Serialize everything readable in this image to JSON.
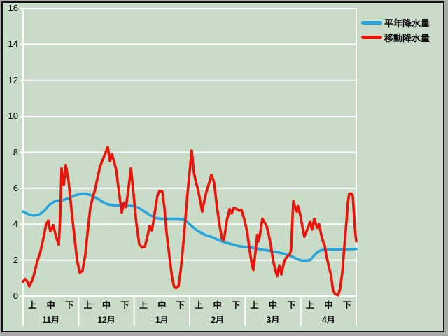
{
  "chart": {
    "title": "",
    "colors": {
      "background": "#c8dcc8",
      "gridline": "#ffffff",
      "frame_gray": "#a8a8a8",
      "frame_black": "#101010",
      "normal_line": "#29a3dc",
      "moving_line": "#ec1408"
    },
    "legend": [
      {
        "label": "平年降水量",
        "color": "#29a3dc"
      },
      {
        "label": "移動降水量",
        "color": "#ec1408"
      }
    ],
    "y_axis": {
      "min": 0,
      "max": 16,
      "step": 2,
      "ticks": [
        16,
        14,
        12,
        10,
        8,
        6,
        4,
        2,
        0
      ]
    },
    "x_axis": {
      "months": [
        "11月",
        "12月",
        "1月",
        "2月",
        "3月",
        "4月"
      ],
      "periods": [
        "上",
        "中",
        "下"
      ]
    }
  },
  "chart_data": {
    "type": "line",
    "title": "",
    "xlabel": "",
    "ylabel": "",
    "x_unit": "days from Nov 1 (0) to Apr 30 (181); months 11月-4月 each split into 上/中/下",
    "xlim": [
      0,
      181
    ],
    "ylim": [
      0,
      16
    ],
    "yticks": [
      0,
      2,
      4,
      6,
      8,
      10,
      12,
      14,
      16
    ],
    "grid": true,
    "legend_position": "right",
    "categories": [
      "11月",
      "12月",
      "1月",
      "2月",
      "3月",
      "4月"
    ],
    "series": [
      {
        "name": "平年降水量",
        "color": "#29a3dc",
        "x": [
          0,
          3,
          6,
          9,
          12,
          14,
          16,
          18,
          22,
          25,
          28,
          31,
          34,
          37,
          40,
          43,
          46,
          50,
          55,
          60,
          63,
          66,
          69,
          72,
          75,
          80,
          84,
          87,
          89,
          91,
          95,
          99,
          103,
          106,
          110,
          114,
          118,
          122,
          126,
          130,
          134,
          137,
          140,
          143,
          146,
          149,
          151,
          154,
          156,
          158,
          160,
          162,
          165,
          170,
          175,
          181
        ],
        "y": [
          4.7,
          4.55,
          4.48,
          4.55,
          4.8,
          5.05,
          5.2,
          5.3,
          5.35,
          5.45,
          5.6,
          5.68,
          5.7,
          5.6,
          5.45,
          5.25,
          5.1,
          5.05,
          5.05,
          5.0,
          4.9,
          4.7,
          4.5,
          4.35,
          4.3,
          4.3,
          4.3,
          4.28,
          4.15,
          3.95,
          3.62,
          3.4,
          3.27,
          3.12,
          2.98,
          2.86,
          2.76,
          2.72,
          2.66,
          2.58,
          2.52,
          2.46,
          2.4,
          2.32,
          2.2,
          2.05,
          1.98,
          1.97,
          2.0,
          2.25,
          2.45,
          2.55,
          2.6,
          2.6,
          2.6,
          2.62
        ]
      },
      {
        "name": "移動降水量",
        "color": "#ec1408",
        "x": [
          0,
          1.1,
          2.3,
          3.4,
          4.6,
          5.7,
          7.6,
          9.5,
          11.4,
          12.5,
          13.7,
          14.8,
          16.4,
          17.9,
          19.4,
          20.2,
          20.9,
          22.1,
          23.2,
          24.7,
          26.2,
          27.8,
          29.3,
          30.8,
          32.3,
          33.8,
          35.4,
          36.5,
          37.6,
          38.8,
          40.3,
          41.8,
          43.3,
          44.9,
          46,
          47.2,
          48.3,
          49.4,
          50.6,
          52.1,
          53.6,
          54.8,
          55.9,
          57.4,
          58.6,
          60.1,
          61.6,
          63.1,
          64.6,
          66.2,
          67.7,
          68.8,
          70,
          71.5,
          73,
          74.1,
          75.7,
          76.8,
          78,
          79.5,
          81,
          82.1,
          83.3,
          84.4,
          85.6,
          86.7,
          87.8,
          88.9,
          90.1,
          91.6,
          92.8,
          93.9,
          95.1,
          97.3,
          98.5,
          99.6,
          101.1,
          102.3,
          103.8,
          105.3,
          106.8,
          108,
          109.1,
          110.7,
          112.2,
          113.3,
          114.5,
          116,
          117.5,
          118.6,
          120.1,
          121.7,
          122.8,
          124.3,
          125.1,
          126.2,
          127.2,
          128,
          129,
          130,
          131.2,
          132.3,
          133.5,
          134.6,
          135.8,
          136.9,
          138,
          139.2,
          140.3,
          141.8,
          143.3,
          144.9,
          145.6,
          146.8,
          147.9,
          148.7,
          149.4,
          150.6,
          151.7,
          152.8,
          154,
          155.1,
          155.9,
          157,
          158.2,
          159.7,
          160.8,
          162,
          163.1,
          163.9,
          164.6,
          166.2,
          167.3,
          168.4,
          169.6,
          171.1,
          172.2,
          173.4,
          174.5,
          175.7,
          176.4,
          177.2,
          178.3,
          179.1,
          179.8,
          180.6,
          181
        ],
        "y": [
          0.8,
          0.95,
          0.8,
          0.55,
          0.8,
          1.1,
          1.9,
          2.5,
          3.4,
          4.0,
          4.2,
          3.6,
          3.95,
          3.3,
          2.85,
          4.5,
          7.1,
          6.2,
          7.3,
          6.4,
          4.9,
          3.4,
          2.0,
          1.3,
          1.4,
          2.3,
          3.9,
          4.9,
          5.4,
          5.8,
          6.5,
          7.2,
          7.6,
          8.0,
          8.3,
          7.5,
          7.9,
          7.5,
          7.0,
          5.8,
          4.65,
          5.2,
          4.95,
          6.1,
          7.1,
          5.6,
          4.0,
          2.9,
          2.7,
          2.75,
          3.4,
          3.9,
          3.65,
          4.6,
          5.6,
          5.85,
          5.8,
          4.9,
          3.5,
          2.2,
          1.0,
          0.5,
          0.45,
          0.55,
          1.4,
          2.5,
          3.8,
          5.2,
          6.5,
          8.1,
          6.9,
          6.35,
          5.9,
          4.7,
          5.3,
          5.8,
          6.3,
          6.75,
          6.3,
          5.0,
          3.9,
          3.2,
          3.1,
          4.2,
          4.85,
          4.6,
          4.9,
          4.85,
          4.75,
          4.8,
          4.3,
          3.6,
          2.75,
          1.75,
          1.45,
          2.4,
          3.4,
          3.05,
          3.6,
          4.3,
          4.1,
          3.9,
          3.4,
          2.8,
          2.0,
          1.5,
          1.1,
          1.7,
          1.2,
          1.9,
          2.2,
          2.3,
          2.6,
          5.3,
          4.9,
          4.7,
          5.0,
          4.5,
          3.9,
          3.3,
          3.6,
          3.9,
          4.15,
          3.7,
          4.3,
          3.8,
          4.0,
          3.4,
          3.0,
          2.8,
          2.3,
          1.6,
          1.15,
          0.3,
          0.1,
          0.05,
          0.4,
          1.3,
          2.7,
          4.2,
          5.2,
          5.7,
          5.7,
          5.6,
          4.5,
          3.4,
          3.05
        ]
      }
    ]
  }
}
